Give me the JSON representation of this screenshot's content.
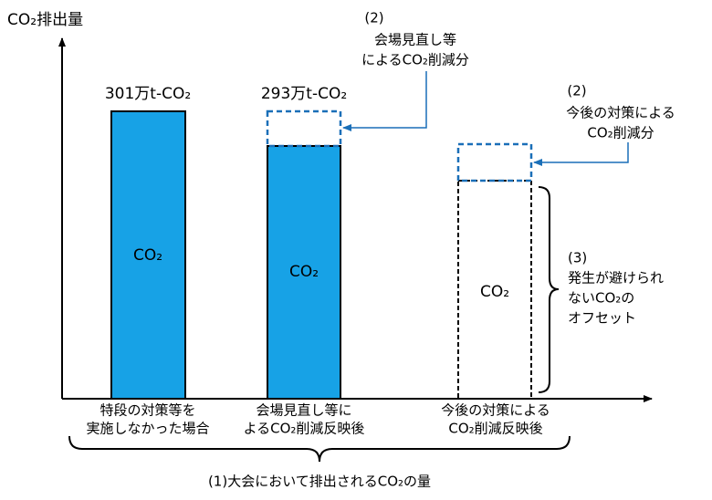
{
  "axis_label": "CO₂排出量",
  "bars": [
    {
      "value_label": "301万t-CO₂",
      "inner_label": "CO₂",
      "category": [
        "特段の対策等を",
        "実施しなかった場合"
      ]
    },
    {
      "value_label": "293万t-CO₂",
      "inner_label": "CO₂",
      "category": [
        "会場見直し等に",
        "よるCO₂削減反映後"
      ]
    },
    {
      "inner_label": "CO₂",
      "category": [
        "今後の対策による",
        "CO₂削減反映後"
      ]
    }
  ],
  "annotations": [
    {
      "number": "(2)",
      "lines": [
        "会場見直し等",
        "によるCO₂削減分"
      ]
    },
    {
      "number": "(2)",
      "lines": [
        "今後の対策による",
        "CO₂削減分"
      ]
    }
  ],
  "offset_note": {
    "number": "(3)",
    "lines": [
      "発生が避けられ",
      "ないCO₂の",
      "オフセット"
    ]
  },
  "total_note": "(1)大会において排出されるCO₂の量"
}
